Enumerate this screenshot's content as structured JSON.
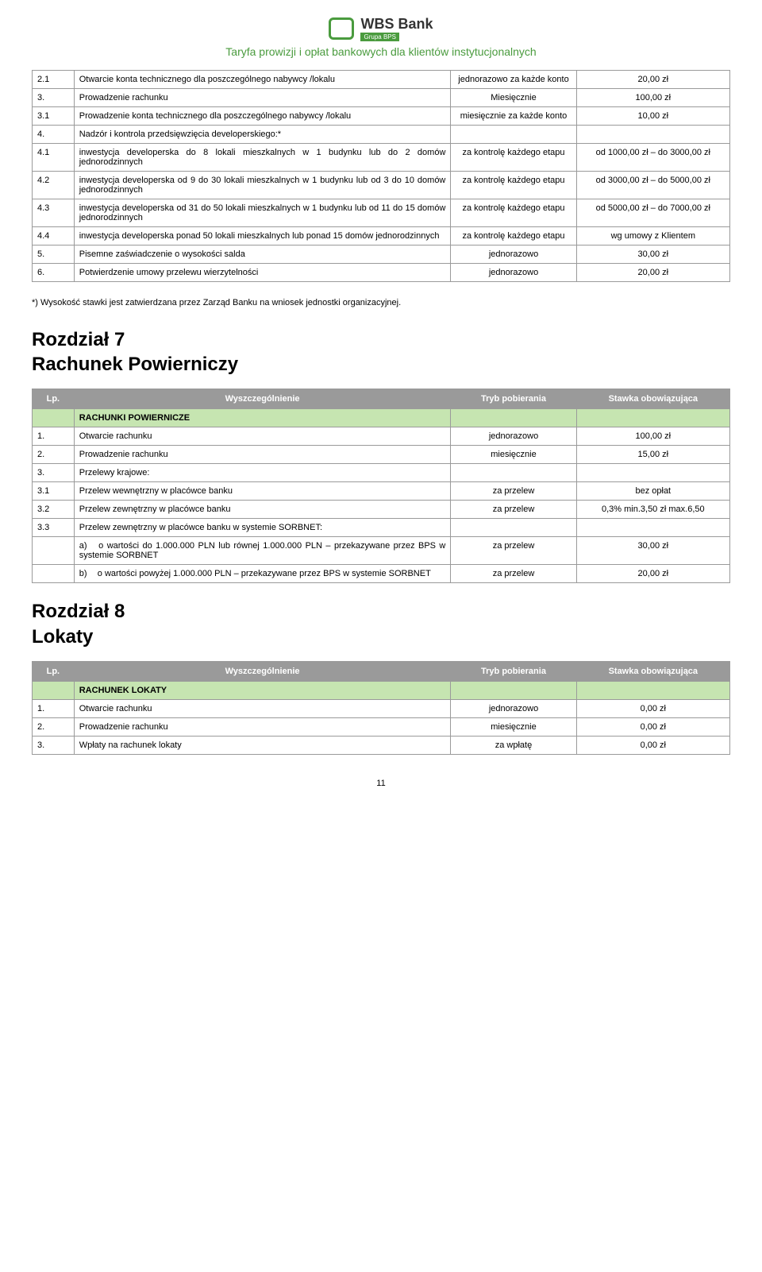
{
  "header": {
    "bank_name": "WBS Bank",
    "grupa": "Grupa BPS",
    "tariff_title": "Taryfa prowizji i opłat bankowych dla klientów instytucjonalnych"
  },
  "colors": {
    "brand_green": "#4a9b3e",
    "header_gray": "#9a9a9a",
    "section_green": "#c6e5b1",
    "border": "#9a9a9a",
    "background": "#ffffff"
  },
  "table1_rows": [
    {
      "num": "2.1",
      "desc": "Otwarcie konta technicznego dla poszczególnego nabywcy /lokalu",
      "tryb": "jednorazowo za każde konto",
      "stawka": "20,00 zł"
    },
    {
      "num": "3.",
      "desc": "Prowadzenie rachunku",
      "tryb": "Miesięcznie",
      "stawka": "100,00 zł"
    },
    {
      "num": "3.1",
      "desc": "Prowadzenie konta technicznego dla poszczególnego nabywcy /lokalu",
      "tryb": "miesięcznie za każde konto",
      "stawka": "10,00 zł"
    },
    {
      "num": "4.",
      "desc": "Nadzór i kontrola przedsięwzięcia developerskiego:*",
      "tryb": "",
      "stawka": ""
    },
    {
      "num": "4.1",
      "desc": "inwestycja developerska do 8 lokali mieszkalnych w 1 budynku lub do 2 domów jednorodzinnych",
      "tryb": "za kontrolę każdego etapu",
      "stawka": "od 1000,00 zł – do 3000,00 zł"
    },
    {
      "num": "4.2",
      "desc": "inwestycja developerska od 9 do 30 lokali mieszkalnych w 1 budynku lub od 3 do 10 domów jednorodzinnych",
      "tryb": "za kontrolę każdego etapu",
      "stawka": "od 3000,00 zł – do 5000,00 zł"
    },
    {
      "num": "4.3",
      "desc": "inwestycja developerska od 31 do 50 lokali mieszkalnych w 1 budynku lub od 11 do 15 domów jednorodzinnych",
      "tryb": "za kontrolę każdego etapu",
      "stawka": "od 5000,00 zł – do 7000,00 zł"
    },
    {
      "num": "4.4",
      "desc": "inwestycja developerska ponad 50 lokali mieszkalnych lub ponad 15 domów jednorodzinnych",
      "tryb": "za kontrolę każdego etapu",
      "stawka": "wg umowy z Klientem"
    },
    {
      "num": "5.",
      "desc": "Pisemne zaświadczenie o wysokości salda",
      "tryb": "jednorazowo",
      "stawka": "30,00 zł"
    },
    {
      "num": "6.",
      "desc": "Potwierdzenie umowy przelewu wierzytelności",
      "tryb": "jednorazowo",
      "stawka": "20,00 zł"
    }
  ],
  "footnote": "*) Wysokość stawki jest zatwierdzana przez Zarząd Banku na wniosek jednostki organizacyjnej.",
  "chapter7": {
    "title_line1": "Rozdział 7",
    "title_line2": "Rachunek Powierniczy",
    "header": {
      "lp": "Lp.",
      "wysz": "Wyszczególnienie",
      "tryb": "Tryb pobierania",
      "stawka": "Stawka obowiązująca"
    },
    "section_label": "RACHUNKI POWIERNICZE",
    "rows": [
      {
        "num": "1.",
        "desc": "Otwarcie rachunku",
        "tryb": "jednorazowo",
        "stawka": "100,00 zł"
      },
      {
        "num": "2.",
        "desc": "Prowadzenie rachunku",
        "tryb": "miesięcznie",
        "stawka": "15,00 zł"
      },
      {
        "num": "3.",
        "desc": "Przelewy krajowe:",
        "tryb": "",
        "stawka": ""
      },
      {
        "num": "3.1",
        "desc": "Przelew wewnętrzny w placówce banku",
        "tryb": "za przelew",
        "stawka": "bez opłat"
      },
      {
        "num": "3.2",
        "desc": "Przelew zewnętrzny w placówce banku",
        "tryb": "za przelew",
        "stawka": "0,3% min.3,50 zł max.6,50"
      },
      {
        "num": "3.3",
        "desc": "Przelew zewnętrzny w placówce banku w systemie SORBNET:",
        "tryb": "",
        "stawka": ""
      }
    ],
    "sub_rows": [
      {
        "num": "a)",
        "desc": "o wartości do 1.000.000 PLN lub równej 1.000.000 PLN – przekazywane przez BPS  w systemie SORBNET",
        "tryb": "za przelew",
        "stawka": "30,00 zł"
      },
      {
        "num": "b)",
        "desc": "o wartości powyżej 1.000.000 PLN – przekazywane przez BPS w systemie SORBNET",
        "tryb": "za przelew",
        "stawka": "20,00 zł"
      }
    ]
  },
  "chapter8": {
    "title_line1": "Rozdział 8",
    "title_line2": "Lokaty",
    "header": {
      "lp": "Lp.",
      "wysz": "Wyszczególnienie",
      "tryb": "Tryb pobierania",
      "stawka": "Stawka obowiązująca"
    },
    "section_label": "RACHUNEK LOKATY",
    "rows": [
      {
        "num": "1.",
        "desc": "Otwarcie rachunku",
        "tryb": "jednorazowo",
        "stawka": "0,00 zł"
      },
      {
        "num": "2.",
        "desc": "Prowadzenie rachunku",
        "tryb": "miesięcznie",
        "stawka": "0,00 zł"
      },
      {
        "num": "3.",
        "desc": "Wpłaty na rachunek lokaty",
        "tryb": "za wpłatę",
        "stawka": "0,00 zł"
      }
    ]
  },
  "page_number": "11"
}
